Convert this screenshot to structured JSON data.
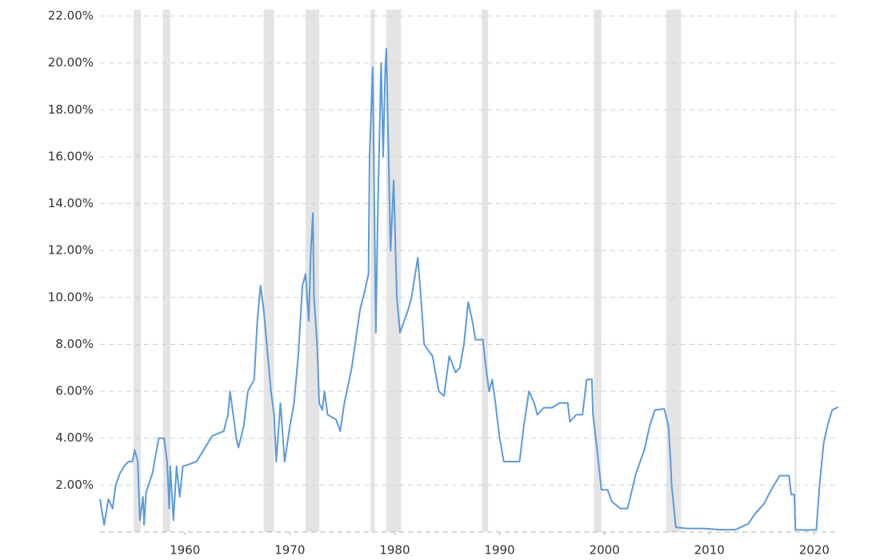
{
  "chart_data": {
    "type": "line",
    "color": "#5b9bd9",
    "shade_color": "#e4e4e4",
    "grid": true,
    "xlim": [
      1951.9,
      2022.3
    ],
    "xticks": [
      1960,
      1970,
      1980,
      1990,
      2000,
      2010,
      2020
    ],
    "ylim": [
      0,
      22
    ],
    "yticks": [
      {
        "value": 2,
        "label": "2.00%"
      },
      {
        "value": 4,
        "label": "4.00%"
      },
      {
        "value": 6,
        "label": "6.00%"
      },
      {
        "value": 8,
        "label": "8.00%"
      },
      {
        "value": 10,
        "label": "10.00%"
      },
      {
        "value": 12,
        "label": "12.00%"
      },
      {
        "value": 14,
        "label": "14.00%"
      },
      {
        "value": 16,
        "label": "16.00%"
      },
      {
        "value": 18,
        "label": "18.00%"
      },
      {
        "value": 20,
        "label": "20.00%"
      },
      {
        "value": 22,
        "label": "22.00%"
      }
    ],
    "shaded_ranges": [
      [
        1955.1,
        1955.8
      ],
      [
        1957.9,
        1958.6
      ],
      [
        1967.5,
        1968.5
      ],
      [
        1971.5,
        1972.8
      ],
      [
        1977.7,
        1978.1
      ],
      [
        1979.2,
        1980.6
      ],
      [
        1988.3,
        1988.9
      ],
      [
        1999.0,
        1999.7
      ],
      [
        2005.9,
        2007.3
      ],
      [
        2018.1,
        2018.3
      ]
    ],
    "x": [
      1951.9,
      1952.3,
      1952.7,
      1953.1,
      1953.4,
      1953.8,
      1954.2,
      1954.6,
      1955.0,
      1955.2,
      1955.5,
      1955.7,
      1956.0,
      1956.1,
      1956.3,
      1956.9,
      1957.3,
      1957.5,
      1958.0,
      1958.3,
      1958.5,
      1958.6,
      1958.9,
      1959.2,
      1959.5,
      1959.8,
      1961.1,
      1962.6,
      1963.7,
      1964.1,
      1964.3,
      1964.6,
      1964.9,
      1965.1,
      1965.6,
      1966.0,
      1966.6,
      1966.9,
      1967.2,
      1967.5,
      1967.9,
      1968.2,
      1968.5,
      1968.7,
      1969.1,
      1969.5,
      1970.0,
      1970.4,
      1970.8,
      1971.2,
      1971.5,
      1971.8,
      1972.0,
      1972.2,
      1972.3,
      1972.6,
      1972.8,
      1973.1,
      1973.3,
      1973.6,
      1974.4,
      1974.8,
      1975.2,
      1975.9,
      1976.7,
      1977.1,
      1977.5,
      1977.6,
      1977.9,
      1978.2,
      1978.4,
      1978.7,
      1978.9,
      1979.1,
      1979.2,
      1979.6,
      1979.9,
      1980.2,
      1980.5,
      1981.3,
      1981.6,
      1982.2,
      1982.5,
      1982.8,
      1983.6,
      1984.2,
      1984.7,
      1985.2,
      1985.8,
      1986.2,
      1986.6,
      1987.0,
      1987.4,
      1987.7,
      1988.4,
      1988.7,
      1989.0,
      1989.3,
      1989.6,
      1990.0,
      1990.4,
      1991.2,
      1991.9,
      1992.3,
      1992.8,
      1993.3,
      1993.6,
      1994.2,
      1995.0,
      1995.7,
      1996.5,
      1996.7,
      1997.3,
      1997.9,
      1998.3,
      1998.8,
      1998.9,
      1999.3,
      1999.7,
      2000.3,
      2000.7,
      2001.5,
      2002.2,
      2003.0,
      2003.8,
      2004.3,
      2004.8,
      2005.7,
      2006.1,
      2006.3,
      2006.4,
      2006.8,
      2007.9,
      2009.5,
      2011.0,
      2012.5,
      2013.7,
      2014.4,
      2015.2,
      2015.9,
      2016.7,
      2017.6,
      2017.8,
      2018.1,
      2018.2,
      2019.4,
      2020.2,
      2020.5,
      2020.9,
      2021.3,
      2021.7,
      2022.3
    ],
    "values": [
      1.4,
      0.3,
      1.4,
      1.0,
      2.0,
      2.5,
      2.8,
      3.0,
      3.0,
      3.5,
      3.0,
      0.5,
      1.5,
      0.3,
      1.7,
      2.5,
      3.5,
      4.0,
      4.0,
      3.0,
      1.0,
      2.8,
      0.5,
      2.8,
      1.5,
      2.8,
      3.0,
      4.1,
      4.3,
      5.0,
      6.0,
      5.0,
      4.0,
      3.6,
      4.5,
      6.0,
      6.5,
      9.0,
      10.5,
      9.5,
      7.5,
      6.0,
      5.0,
      3.0,
      5.5,
      3.0,
      4.5,
      5.5,
      7.5,
      10.5,
      11.0,
      9.0,
      12.0,
      13.6,
      10.0,
      8.0,
      5.5,
      5.2,
      6.0,
      5.0,
      4.8,
      4.3,
      5.5,
      7.0,
      9.5,
      10.2,
      11.0,
      16.0,
      19.8,
      8.5,
      14.0,
      20.0,
      16.0,
      19.8,
      20.6,
      12.0,
      15.0,
      10.0,
      8.5,
      9.5,
      10.0,
      11.7,
      10.0,
      8.0,
      7.5,
      6.0,
      5.8,
      7.5,
      6.8,
      7.0,
      8.0,
      9.8,
      9.0,
      8.2,
      8.2,
      7.0,
      6.0,
      6.5,
      5.5,
      4.0,
      3.0,
      3.0,
      3.0,
      4.5,
      6.0,
      5.5,
      5.0,
      5.3,
      5.3,
      5.5,
      5.5,
      4.7,
      5.0,
      5.0,
      6.5,
      6.5,
      5.0,
      3.5,
      1.8,
      1.8,
      1.3,
      1.0,
      1.0,
      2.5,
      3.5,
      4.5,
      5.2,
      5.25,
      4.5,
      3.0,
      2.0,
      0.2,
      0.15,
      0.15,
      0.1,
      0.1,
      0.35,
      0.8,
      1.2,
      1.8,
      2.4,
      2.4,
      1.6,
      1.6,
      0.1,
      0.08,
      0.1,
      2.0,
      3.8,
      4.6,
      5.2,
      5.33
    ]
  }
}
